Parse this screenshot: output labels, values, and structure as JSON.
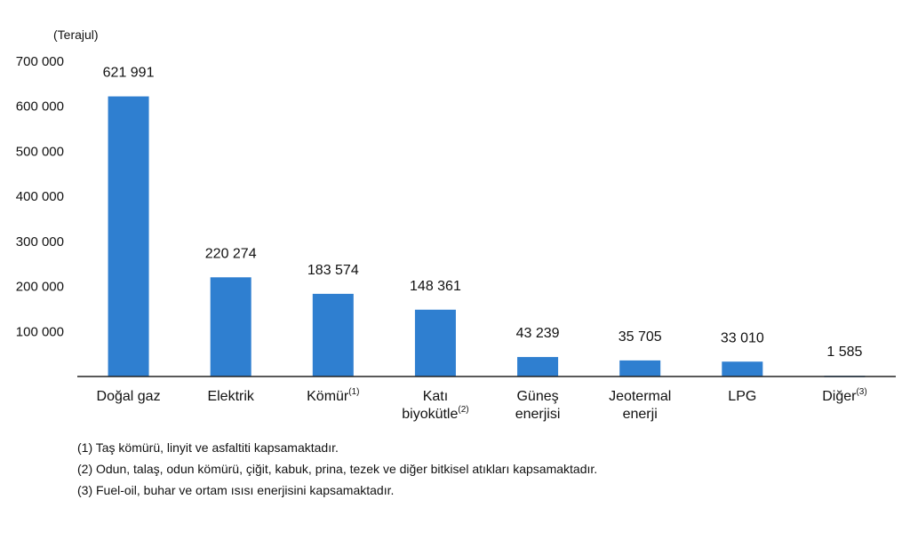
{
  "chart_data": {
    "type": "bar",
    "unit_label": "(Terajul)",
    "categories": [
      {
        "lines": [
          "Doğal gaz"
        ],
        "sup": ""
      },
      {
        "lines": [
          "Elektrik"
        ],
        "sup": ""
      },
      {
        "lines": [
          "Kömür"
        ],
        "sup": "(1)"
      },
      {
        "lines": [
          "Katı",
          "biyokütle"
        ],
        "sup": "(2)"
      },
      {
        "lines": [
          "Güneş",
          "enerjisi"
        ],
        "sup": ""
      },
      {
        "lines": [
          "Jeotermal",
          "enerji"
        ],
        "sup": ""
      },
      {
        "lines": [
          "LPG"
        ],
        "sup": ""
      },
      {
        "lines": [
          "Diğer"
        ],
        "sup": "(3)"
      }
    ],
    "values": [
      621991,
      220274,
      183574,
      148361,
      43239,
      35705,
      33010,
      1585
    ],
    "value_labels": [
      "621 991",
      "220 274",
      "183 574",
      "148 361",
      "43 239",
      "35 705",
      "33 010",
      "1 585"
    ],
    "ylim": [
      0,
      700000
    ],
    "y_ticks": [
      {
        "value": 100000,
        "label": "100 000"
      },
      {
        "value": 200000,
        "label": "200 000"
      },
      {
        "value": 300000,
        "label": "300 000"
      },
      {
        "value": 400000,
        "label": "400 000"
      },
      {
        "value": 500000,
        "label": "500 000"
      },
      {
        "value": 600000,
        "label": "600 000"
      },
      {
        "value": 700000,
        "label": "700 000"
      }
    ],
    "bar_color": "#2f7fd0",
    "grid": false
  },
  "footnotes": [
    "(1) Taş kömürü, linyit ve asfaltiti kapsamaktadır.",
    "(2) Odun, talaş, odun kömürü, çiğit, kabuk, prina, tezek ve diğer bitkisel atıkları kapsamaktadır.",
    "(3) Fuel-oil, buhar ve ortam ısısı enerjisini kapsamaktadır."
  ]
}
